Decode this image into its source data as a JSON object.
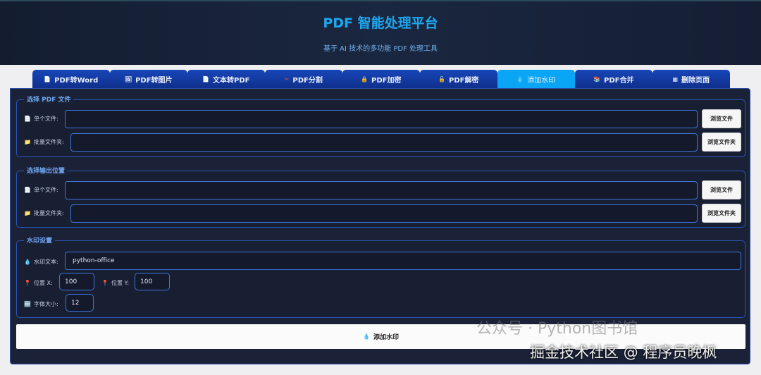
{
  "header": {
    "title": "PDF 智能处理平台",
    "subtitle": "基于 AI 技术的多功能 PDF 处理工具"
  },
  "tabs": [
    {
      "icon": "📄",
      "label": "PDF转Word"
    },
    {
      "icon": "🖼",
      "label": "PDF转图片"
    },
    {
      "icon": "📄",
      "label": "文本转PDF"
    },
    {
      "icon": "✂",
      "label": "PDF分割"
    },
    {
      "icon": "🔒",
      "label": "PDF加密"
    },
    {
      "icon": "🔓",
      "label": "PDF解密"
    },
    {
      "icon": "💧",
      "label": "添加水印",
      "active": true
    },
    {
      "icon": "📚",
      "label": "PDF合并"
    },
    {
      "icon": "▦",
      "label": "删除页面"
    }
  ],
  "input_group": {
    "title": "选择 PDF 文件",
    "single_label": "单个文件:",
    "single_value": "",
    "batch_label": "批量文件夹:",
    "batch_value": "",
    "browse_file": "浏览文件",
    "browse_folder": "浏览文件夹"
  },
  "output_group": {
    "title": "选择输出位置",
    "single_label": "单个文件:",
    "single_value": "",
    "batch_label": "批量文件夹:",
    "batch_value": "",
    "browse_file": "浏览文件",
    "browse_folder": "浏览文件夹"
  },
  "watermark": {
    "title": "水印设置",
    "text_label": "水印文本:",
    "text_value": "python-office",
    "x_label": "位置 X:",
    "x_value": "100",
    "y_label": "位置 Y:",
    "y_value": "100",
    "size_label": "字体大小:",
    "size_value": "12"
  },
  "action": {
    "label": "添加水印",
    "icon": "💧"
  },
  "overlays": {
    "wechat": "公众号 · Python图书馆",
    "juejin": "掘金技术社区 @ 程序员晚枫"
  }
}
